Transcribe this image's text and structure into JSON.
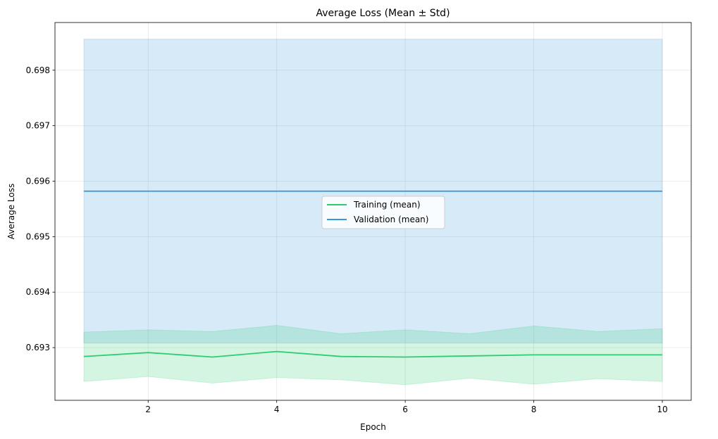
{
  "chart_data": {
    "type": "line",
    "title": "Average Loss (Mean ± Std)",
    "xlabel": "Epoch",
    "ylabel": "Average Loss",
    "xlim": [
      0.55,
      10.45
    ],
    "ylim": [
      0.69205,
      0.69886
    ],
    "xticks": [
      2,
      4,
      6,
      8,
      10
    ],
    "yticks": [
      0.693,
      0.694,
      0.695,
      0.696,
      0.697,
      0.698
    ],
    "ytick_labels": [
      "0.693",
      "0.694",
      "0.695",
      "0.696",
      "0.697",
      "0.698"
    ],
    "grid": true,
    "legend_position": "center",
    "x": [
      1,
      2,
      3,
      4,
      5,
      6,
      7,
      8,
      9,
      10
    ],
    "series": [
      {
        "name": "Training (mean)",
        "color": "#2ecc71",
        "values": [
          0.69284,
          0.69291,
          0.69283,
          0.69293,
          0.69284,
          0.69283,
          0.69285,
          0.69287,
          0.69287,
          0.69287
        ],
        "lower": [
          0.69239,
          0.69248,
          0.69236,
          0.69246,
          0.69242,
          0.69233,
          0.69245,
          0.69234,
          0.69244,
          0.69239
        ],
        "upper": [
          0.69328,
          0.69332,
          0.69329,
          0.6934,
          0.69325,
          0.69332,
          0.69325,
          0.69339,
          0.69329,
          0.69334
        ]
      },
      {
        "name": "Validation (mean)",
        "color": "#3498db",
        "values": [
          0.69582,
          0.69582,
          0.69582,
          0.69582,
          0.69582,
          0.69582,
          0.69582,
          0.69582,
          0.69582,
          0.69582
        ],
        "lower": [
          0.69308,
          0.69308,
          0.69308,
          0.69308,
          0.69308,
          0.69308,
          0.69308,
          0.69308,
          0.69308,
          0.69308
        ],
        "upper": [
          0.69856,
          0.69856,
          0.69856,
          0.69856,
          0.69856,
          0.69856,
          0.69856,
          0.69856,
          0.69856,
          0.69856
        ]
      }
    ]
  }
}
